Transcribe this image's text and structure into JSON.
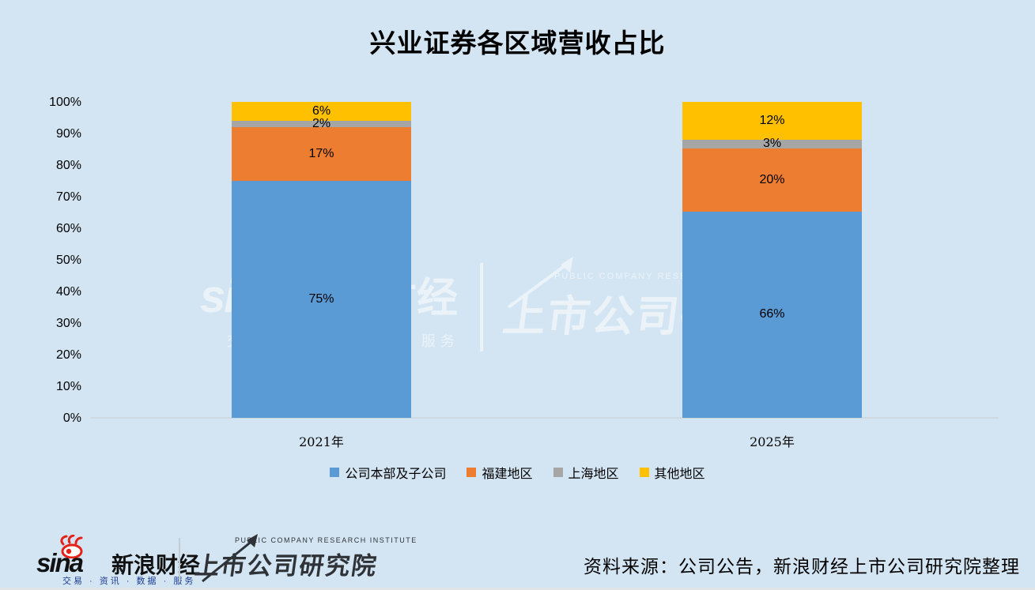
{
  "title": "兴业证券各区域营收占比",
  "chart_data": {
    "type": "bar",
    "variant": "stacked-percent",
    "title": "兴业证券各区域营收占比",
    "categories": [
      "2021年",
      "2025年"
    ],
    "series": [
      {
        "name": "公司本部及子公司",
        "color": "#5B9BD5",
        "values": [
          75,
          66
        ]
      },
      {
        "name": "福建地区",
        "color": "#ED7D31",
        "values": [
          17,
          20
        ]
      },
      {
        "name": "上海地区",
        "color": "#A6A6A6",
        "values": [
          2,
          3
        ]
      },
      {
        "name": "其他地区",
        "color": "#FFC000",
        "values": [
          6,
          12
        ]
      }
    ],
    "value_suffix": "%",
    "ylim": [
      0,
      100
    ],
    "ytick_step": 10,
    "ytick_suffix": "%",
    "grid": false,
    "legend_position": "bottom",
    "background": "#d3e5f3",
    "axis_line_color": "#ccd3d9"
  },
  "watermark": {
    "sina_text": "sina",
    "finance_text": "新浪财经",
    "tagline": "交易 · 资讯 · 数据 · 服务",
    "institute_en": "PUBLIC COMPANY RESEARCH INSTITUTE",
    "institute_cn": "上市公司研究院"
  },
  "footer": {
    "sina_word": "sina",
    "sina_finance": "新浪财经",
    "sina_tagline": "交易 · 资讯 · 数据 · 服务",
    "institute_en": "PUBLIC COMPANY RESEARCH INSTITUTE",
    "institute_cn": "上市公司研究院",
    "source_text": "资料来源：公司公告，新浪财经上市公司研究院整理",
    "accent_red": "#e62117"
  }
}
